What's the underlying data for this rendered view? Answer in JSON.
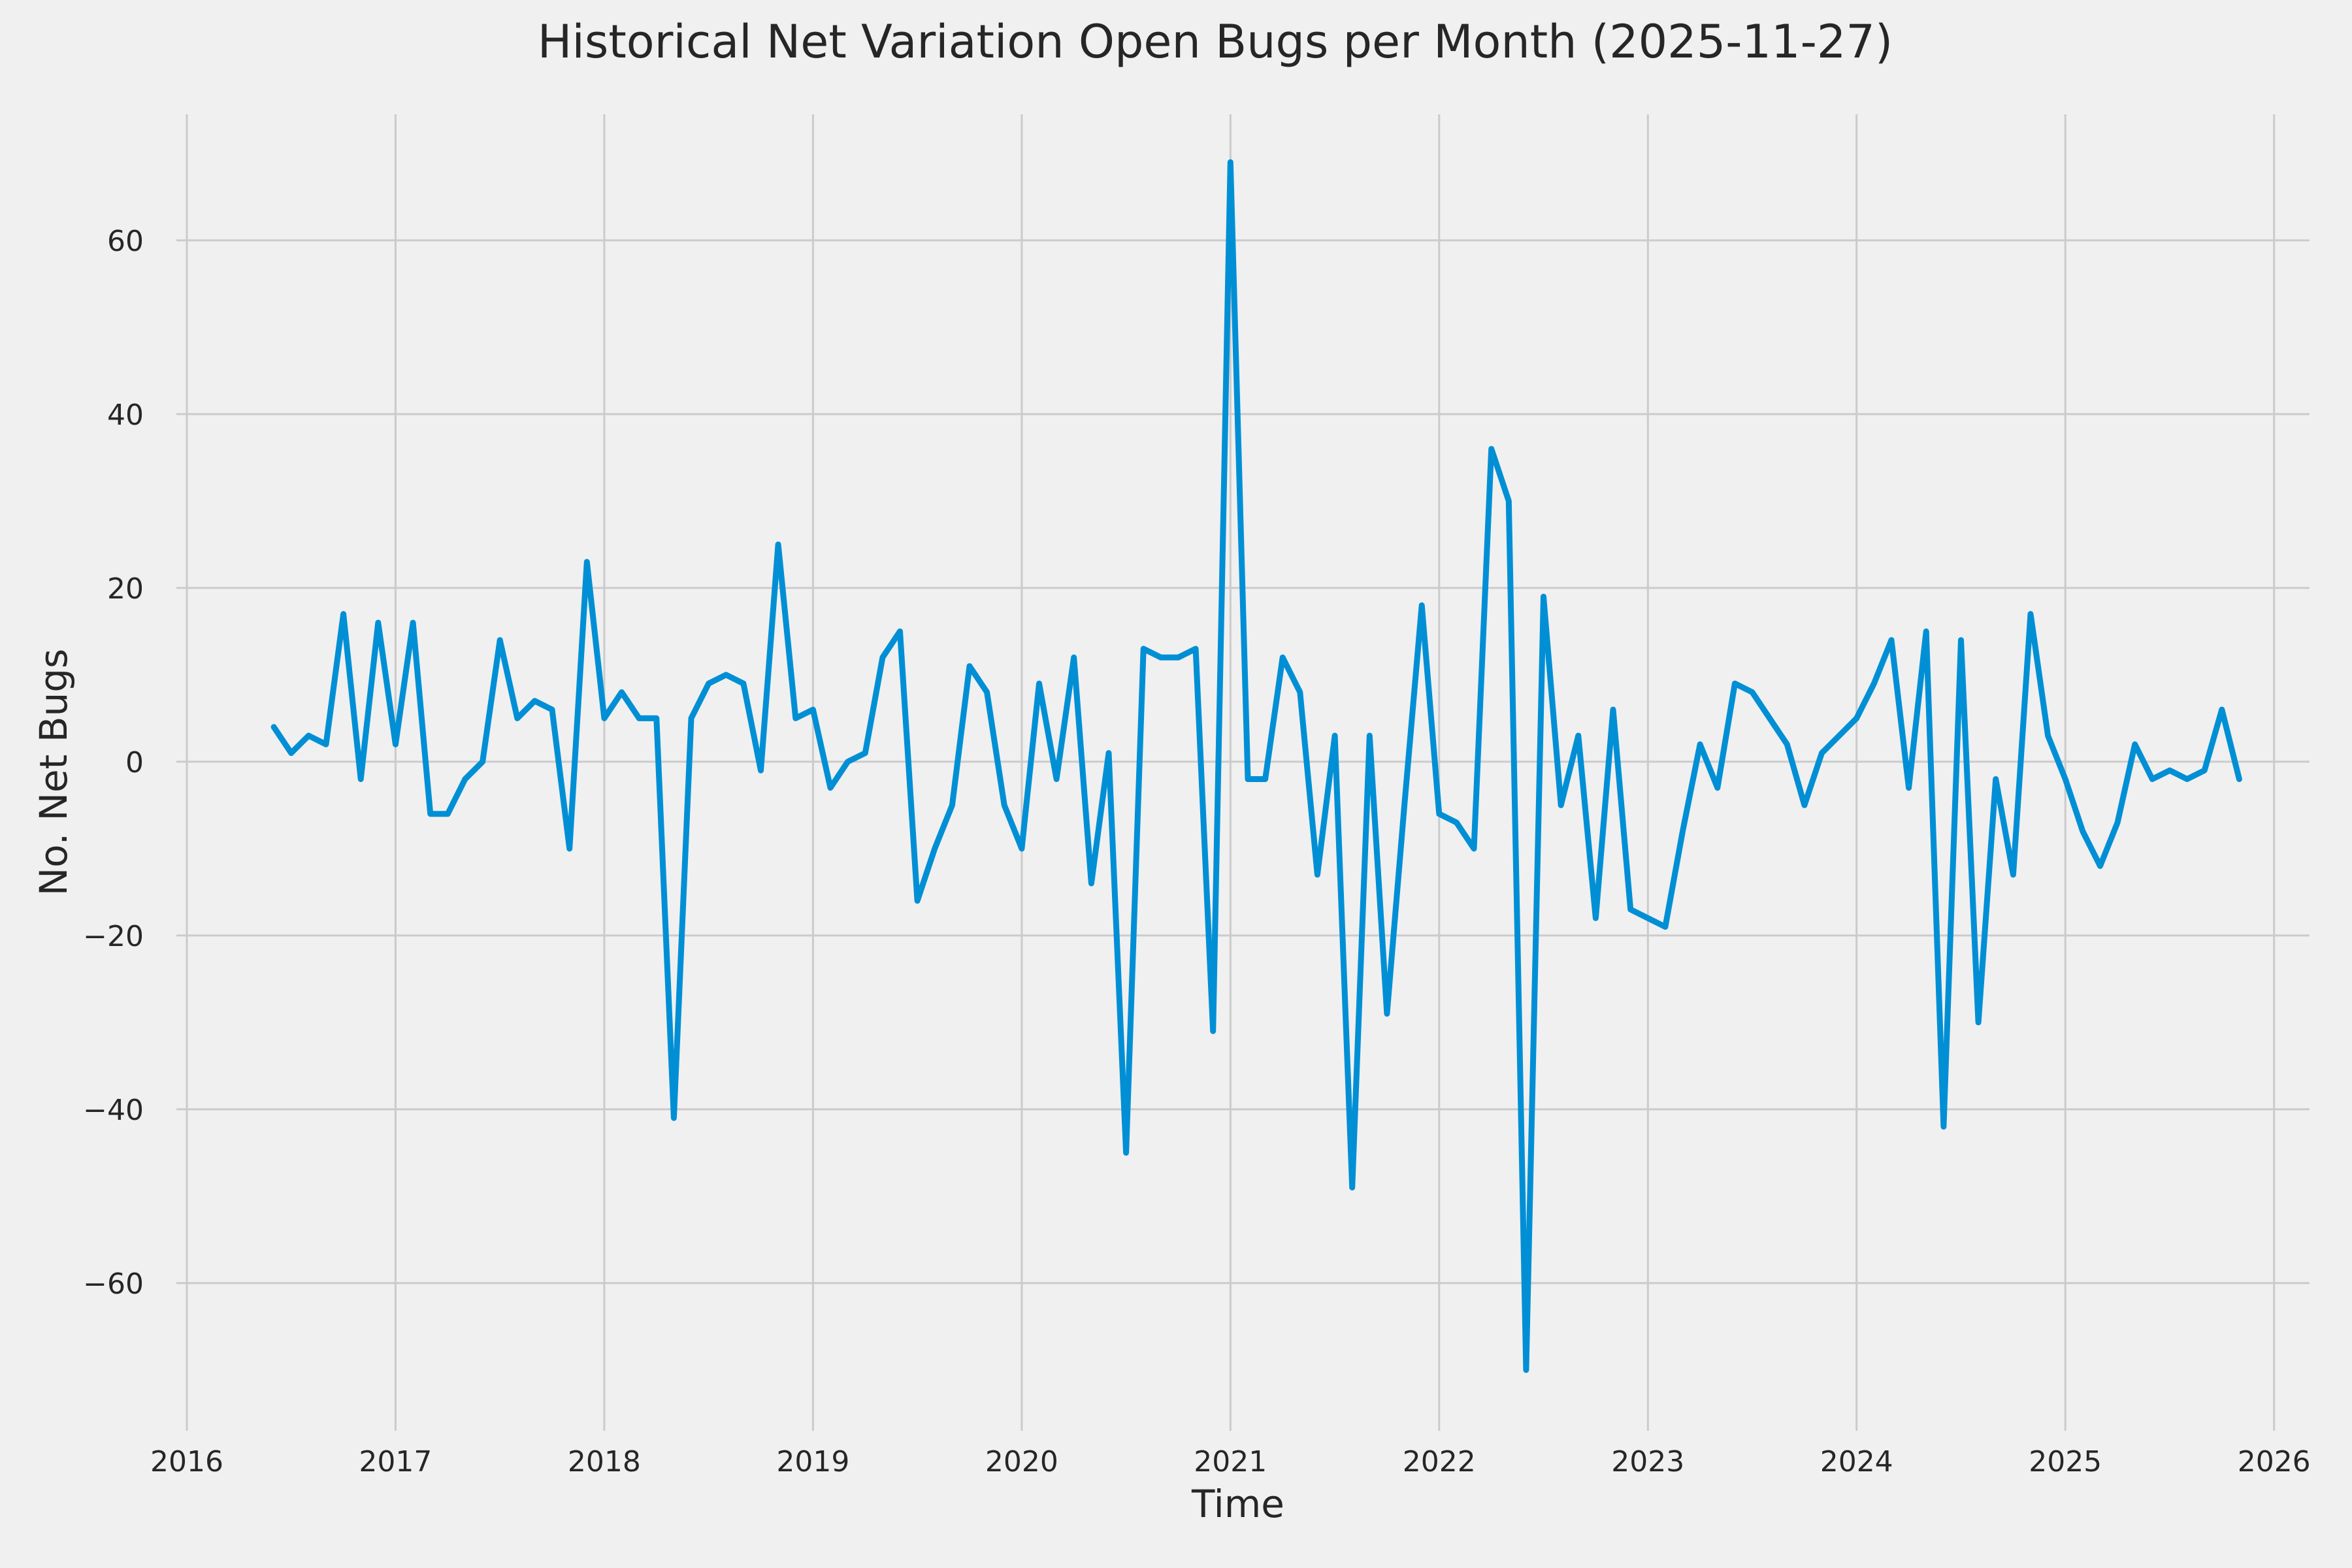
{
  "figure": {
    "background_color": "#F0F0F0",
    "text_color": "#262626"
  },
  "chart_data": {
    "type": "line",
    "title": "Historical Net Variation Open Bugs per Month (2025-11-27)",
    "xlabel": "Time",
    "ylabel": "No. Net Bugs",
    "legend": "none",
    "grid": true,
    "grid_color": "#CBCBCB",
    "line_color": "#008FD5",
    "line_width": 9,
    "xlim": [
      2015.95,
      2026.17
    ],
    "ylim": [
      -77,
      74.5
    ],
    "xticks": [
      2016,
      2017,
      2018,
      2019,
      2020,
      2021,
      2022,
      2023,
      2024,
      2025,
      2026
    ],
    "xtick_labels": [
      "2016",
      "2017",
      "2018",
      "2019",
      "2020",
      "2021",
      "2022",
      "2023",
      "2024",
      "2025",
      "2026"
    ],
    "yticks": [
      -60,
      -40,
      -20,
      0,
      20,
      40,
      60
    ],
    "ytick_labels": [
      "−60",
      "−40",
      "−20",
      "0",
      "20",
      "40",
      "60"
    ],
    "series_name": "net-open-bugs-variation",
    "frequency": "monthly",
    "x_start": {
      "year": 2016,
      "month": 6
    },
    "values": [
      4,
      1,
      3,
      2,
      17,
      -2,
      16,
      2,
      16,
      -6,
      -6,
      -2,
      0,
      14,
      5,
      7,
      6,
      -10,
      23,
      5,
      8,
      5,
      5,
      -41,
      5,
      9,
      10,
      9,
      -1,
      25,
      5,
      6,
      -3,
      0,
      1,
      12,
      15,
      -16,
      -10,
      -5,
      11,
      8,
      -5,
      -10,
      9,
      -2,
      12,
      -14,
      1,
      -45,
      13,
      12,
      12,
      13,
      -31,
      69,
      -2,
      -2,
      12,
      8,
      -13,
      3,
      -49,
      3,
      -29,
      -5,
      18,
      -6,
      -7,
      -10,
      36,
      30,
      -70,
      19,
      -5,
      3,
      -18,
      6,
      -17,
      -18,
      -19,
      -8,
      2,
      -3,
      9,
      8,
      5,
      2,
      -5,
      1,
      3,
      5,
      9,
      14,
      -3,
      15,
      -42,
      14,
      -30,
      -2,
      -13,
      17,
      3,
      -2,
      -8,
      -12,
      -7,
      2,
      -2,
      -1,
      -2,
      -1,
      6,
      -2
    ]
  }
}
